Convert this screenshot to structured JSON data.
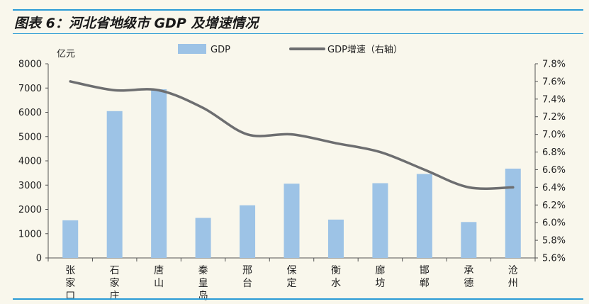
{
  "figure": {
    "caption": "图表 6：河北省地级市 GDP 及增速情况"
  },
  "colors": {
    "bar": "#9dc3e6",
    "line": "#6d6e70",
    "rule": "#2a9bd6",
    "axis": "#555555",
    "background": "#f9f7ec"
  },
  "chart_data": {
    "type": "bar",
    "categories": [
      "张家口",
      "石家庄",
      "唐山",
      "秦皇岛",
      "邢台",
      "保定",
      "衡水",
      "廊坊",
      "邯郸",
      "承德",
      "沧州"
    ],
    "category_labels": [
      [
        "张",
        "家",
        "口"
      ],
      [
        "石",
        "家",
        "庄"
      ],
      [
        "唐",
        "山"
      ],
      [
        "秦",
        "皇",
        "岛"
      ],
      [
        "邢",
        "台"
      ],
      [
        "保",
        "定"
      ],
      [
        "衡",
        "水"
      ],
      [
        "廊",
        "坊"
      ],
      [
        "邯",
        "郸"
      ],
      [
        "承",
        "德"
      ],
      [
        "沧",
        "州"
      ]
    ],
    "series": [
      {
        "name": "GDP",
        "type": "bar",
        "axis": "left",
        "values": [
          1550,
          6050,
          6950,
          1650,
          2170,
          3060,
          1580,
          3080,
          3460,
          1480,
          3680
        ]
      },
      {
        "name": "GDP增速（右轴）",
        "type": "line",
        "axis": "right",
        "values": [
          7.6,
          7.5,
          7.5,
          7.3,
          7.0,
          7.0,
          6.9,
          6.8,
          6.6,
          6.4,
          6.4
        ]
      }
    ],
    "ylabel": "亿元",
    "ylim": [
      0,
      8000
    ],
    "yticks": [
      "0",
      "1000",
      "2000",
      "3000",
      "4000",
      "5000",
      "6000",
      "7000",
      "8000"
    ],
    "y2lim": [
      5.6,
      7.8
    ],
    "y2ticks": [
      "5.6%",
      "5.8%",
      "6.0%",
      "6.2%",
      "6.4%",
      "6.6%",
      "6.8%",
      "7.0%",
      "7.2%",
      "7.4%",
      "7.6%",
      "7.8%"
    ],
    "legend_position": "top-center",
    "grid": false
  }
}
